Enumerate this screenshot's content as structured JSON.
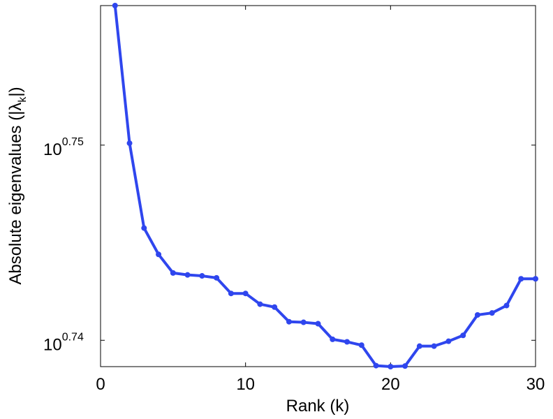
{
  "chart_data": {
    "type": "line",
    "xlabel": "Rank (k)",
    "ylabel": {
      "prefix": "Absolute eigenvalues (|λ",
      "subscript": "k",
      "suffix": "|)"
    },
    "y_scale": "log",
    "xlim": [
      0,
      30
    ],
    "ylim": [
      0.73865,
      0.75715
    ],
    "x_ticks": [
      {
        "value": 0,
        "label": "0"
      },
      {
        "value": 10,
        "label": "10"
      },
      {
        "value": 20,
        "label": "20"
      },
      {
        "value": 30,
        "label": "30"
      }
    ],
    "y_ticks": [
      {
        "value": 0.74,
        "base": "10",
        "exponent": "0.74"
      },
      {
        "value": 0.75,
        "base": "10",
        "exponent": "0.75"
      }
    ],
    "grid": false,
    "series": [
      {
        "color": "#2f46ee",
        "x": [
          1,
          2,
          3,
          4,
          5,
          6,
          7,
          8,
          9,
          10,
          11,
          12,
          13,
          14,
          15,
          16,
          17,
          18,
          19,
          20,
          21,
          22,
          23,
          24,
          25,
          26,
          27,
          28,
          29,
          30
        ],
        "log10_y": [
          0.75715,
          0.7501,
          0.74575,
          0.7444,
          0.74345,
          0.74335,
          0.7433,
          0.7432,
          0.7424,
          0.7424,
          0.74185,
          0.7417,
          0.74095,
          0.74092,
          0.74085,
          0.74005,
          0.73992,
          0.73975,
          0.7387,
          0.73865,
          0.73868,
          0.7397,
          0.7397,
          0.73995,
          0.74025,
          0.7413,
          0.7414,
          0.74178,
          0.74315,
          0.74315
        ]
      }
    ]
  }
}
